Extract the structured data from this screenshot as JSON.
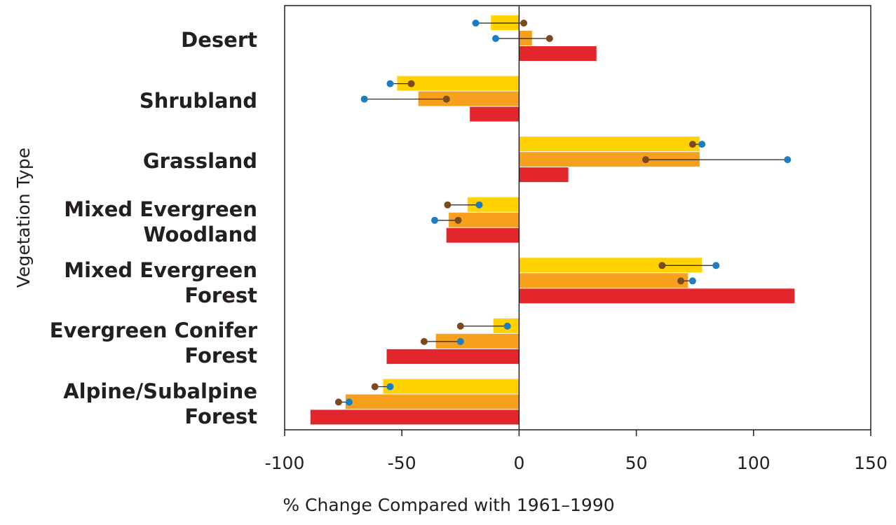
{
  "chart_data": {
    "type": "bar",
    "orientation": "horizontal",
    "xlabel": "% Change Compared with 1961–1990",
    "ylabel": "Vegetation Type",
    "categories": [
      "Desert",
      "Shrubland",
      "Grassland",
      "Mixed Evergreen\nWoodland",
      "Mixed Evergreen\nForest",
      "Evergreen Conifer\nForest",
      "Alpine/Subalpine\nForest"
    ],
    "xlim": [
      -100,
      150
    ],
    "xticks": [
      -100,
      -50,
      0,
      50,
      100,
      150
    ],
    "series": [
      {
        "color": "#ffd200",
        "values": [
          -12,
          -52,
          77,
          -22,
          78,
          -11,
          -58
        ],
        "markers": [
          {
            "color": "#1b7dc2",
            "values": [
              -18.5,
              -55,
              78,
              -17,
              84,
              -5,
              -55
            ]
          },
          {
            "color": "#7b4a1e",
            "values": [
              2,
              -46,
              74,
              -30.5,
              61,
              -25,
              -61.5
            ]
          }
        ]
      },
      {
        "color": "#f6a01e",
        "values": [
          5.5,
          -43,
          77,
          -30,
          72,
          -35.5,
          -74
        ],
        "markers": [
          {
            "color": "#1b7dc2",
            "values": [
              -10,
              -66,
              114.5,
              -36,
              74,
              -25,
              -72.5
            ]
          },
          {
            "color": "#7b4a1e",
            "values": [
              13,
              -31,
              54,
              -26,
              69,
              -40.5,
              -77
            ]
          }
        ]
      },
      {
        "color": "#e3262b",
        "values": [
          33,
          -21,
          21,
          -31,
          117.5,
          -56.5,
          -89
        ]
      }
    ]
  }
}
